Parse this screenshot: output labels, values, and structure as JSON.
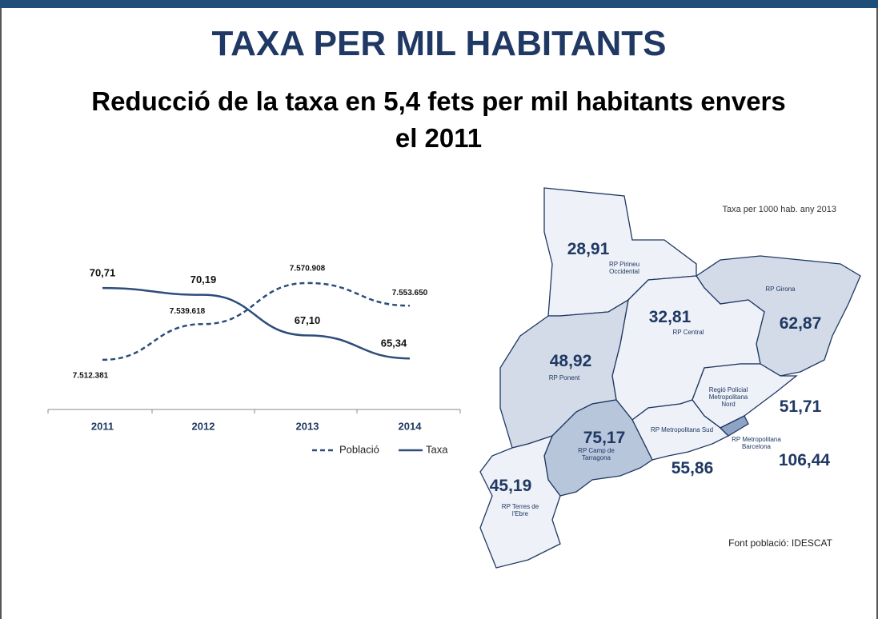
{
  "header": {
    "title": "TAXA PER MIL HABITANTS",
    "subtitle": "Reducció de la taxa en 5,4 fets per mil habitants envers el 2011"
  },
  "chart_data": {
    "type": "line",
    "categories": [
      "2011",
      "2012",
      "2013",
      "2014"
    ],
    "ylim": [
      62,
      72
    ],
    "y2lim": [
      7480000,
      7580000
    ],
    "series": [
      {
        "name": "Població",
        "color": "#2e4d7b",
        "dashed": true,
        "axis": "y2",
        "values": [
          7512381,
          7539618,
          7570908,
          7553650
        ],
        "value_labels": [
          "7.512.381",
          "7.539.618",
          "7.570.908",
          "7.553.650"
        ]
      },
      {
        "name": "Taxa",
        "color": "#2e4d7b",
        "dashed": false,
        "values": [
          70.71,
          70.19,
          67.1,
          65.34
        ],
        "value_labels": [
          "70,71",
          "70,19",
          "67,10",
          "65,34"
        ]
      }
    ],
    "legend": "bottom-right"
  },
  "map": {
    "note": "Taxa per 1000 hab. any 2013",
    "source": "Font població: IDESCAT",
    "regions": [
      {
        "name": "RP Pirineu Occidental",
        "value": "28,91"
      },
      {
        "name": "RP Girona",
        "value": "62,87"
      },
      {
        "name": "RP Central",
        "value": "32,81"
      },
      {
        "name": "RP Ponent",
        "value": "48,92"
      },
      {
        "name": "Regió Policial Metropolitana Nord",
        "value": "51,71"
      },
      {
        "name": "RP Metropolitana Sud",
        "value": "55,86"
      },
      {
        "name": "RP Metropolitana Barcelona",
        "value": "106,44"
      },
      {
        "name": "RP Camp de Tarragona",
        "value": "75,17"
      },
      {
        "name": "RP Terres de l'Ebre",
        "value": "45,19"
      }
    ]
  }
}
